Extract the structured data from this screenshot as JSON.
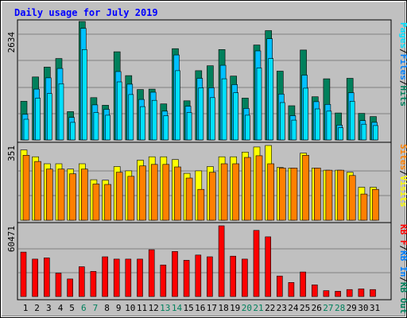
{
  "title": "Daily usage for July 2019",
  "colors": {
    "background": "#C0C0C0",
    "hits": "#00805C",
    "files": "#00C0FF",
    "pages": "#00E0FF",
    "visits": "#FFFF00",
    "sites": "#FF8000",
    "kb_in": "#0080FF",
    "kb_f": "#FF0000",
    "title_text": "#0000FF"
  },
  "chart_data": [
    {
      "type": "bar",
      "panel": "top",
      "y_tick_label": "2634",
      "ylim": [
        0,
        2634
      ],
      "grid": true,
      "legend_position": "right",
      "legend": [
        {
          "label": "Pages",
          "color": "#00E0FF"
        },
        {
          "label": "/",
          "color": "#000000"
        },
        {
          "label": "Files",
          "color": "#0080FF"
        },
        {
          "label": "/",
          "color": "#000000"
        },
        {
          "label": "Hits",
          "color": "#00805C"
        }
      ],
      "categories": [
        "1",
        "2",
        "3",
        "4",
        "5",
        "6",
        "7",
        "8",
        "9",
        "10",
        "11",
        "12",
        "13",
        "14",
        "15",
        "16",
        "17",
        "18",
        "19",
        "20",
        "21",
        "22",
        "23",
        "24",
        "25",
        "26",
        "27",
        "28",
        "29",
        "30",
        "31"
      ],
      "series": [
        {
          "name": "Hits",
          "values": [
            860,
            1400,
            1620,
            1810,
            630,
            2634,
            940,
            770,
            1960,
            1430,
            1120,
            1130,
            800,
            2030,
            870,
            1540,
            1650,
            2010,
            1420,
            930,
            2110,
            2430,
            1530,
            760,
            2000,
            960,
            1360,
            600,
            1370,
            590,
            520
          ]
        },
        {
          "name": "Files",
          "values": [
            570,
            1130,
            1380,
            1590,
            500,
            2480,
            780,
            680,
            1520,
            1240,
            900,
            1060,
            640,
            1890,
            750,
            1370,
            1160,
            1660,
            1230,
            700,
            1980,
            2250,
            1020,
            540,
            1440,
            850,
            790,
            330,
            1050,
            430,
            390
          ]
        },
        {
          "name": "Pages",
          "values": [
            460,
            930,
            1030,
            1250,
            390,
            2010,
            610,
            550,
            1290,
            1010,
            740,
            880,
            540,
            1540,
            610,
            1160,
            940,
            1360,
            1050,
            550,
            1600,
            1810,
            830,
            440,
            1150,
            690,
            640,
            270,
            860,
            350,
            320
          ]
        }
      ]
    },
    {
      "type": "bar",
      "panel": "middle",
      "y_tick_label": "351",
      "ylim": [
        0,
        351
      ],
      "grid": true,
      "legend_position": "right",
      "legend": [
        {
          "label": "Sites",
          "color": "#FF8000"
        },
        {
          "label": "/",
          "color": "#000000"
        },
        {
          "label": "Visits",
          "color": "#FFFF00"
        }
      ],
      "categories": [
        "1",
        "2",
        "3",
        "4",
        "5",
        "6",
        "7",
        "8",
        "9",
        "10",
        "11",
        "12",
        "13",
        "14",
        "15",
        "16",
        "17",
        "18",
        "19",
        "20",
        "21",
        "22",
        "23",
        "24",
        "25",
        "26",
        "27",
        "28",
        "29",
        "30",
        "31"
      ],
      "series": [
        {
          "name": "Visits",
          "values": [
            330,
            298,
            265,
            265,
            240,
            265,
            190,
            188,
            252,
            232,
            282,
            298,
            298,
            285,
            220,
            232,
            252,
            298,
            298,
            320,
            344,
            351,
            248,
            245,
            315,
            245,
            235,
            235,
            225,
            155,
            155
          ]
        },
        {
          "name": "Sites",
          "values": [
            305,
            276,
            240,
            240,
            218,
            240,
            170,
            168,
            225,
            206,
            255,
            262,
            262,
            250,
            198,
            145,
            225,
            265,
            265,
            295,
            303,
            265,
            245,
            245,
            305,
            245,
            235,
            235,
            210,
            123,
            145
          ]
        }
      ]
    },
    {
      "type": "bar",
      "panel": "bottom",
      "y_tick_label": "60471",
      "ylim": [
        0,
        60471
      ],
      "grid": true,
      "legend_position": "right",
      "legend": [
        {
          "label": "KB F",
          "color": "#FF0000"
        },
        {
          "label": "/",
          "color": "#000000"
        },
        {
          "label": "KB In",
          "color": "#0080FF"
        },
        {
          "label": "/",
          "color": "#000000"
        },
        {
          "label": "KB Out",
          "color": "#00805C"
        }
      ],
      "categories": [
        "1",
        "2",
        "3",
        "4",
        "5",
        "6",
        "7",
        "8",
        "9",
        "10",
        "11",
        "12",
        "13",
        "14",
        "15",
        "16",
        "17",
        "18",
        "19",
        "20",
        "21",
        "22",
        "23",
        "24",
        "25",
        "26",
        "27",
        "28",
        "29",
        "30",
        "31"
      ],
      "series": [
        {
          "name": "KB F",
          "values": [
            38000,
            32000,
            33000,
            20000,
            15000,
            25500,
            21500,
            34000,
            32000,
            32000,
            32000,
            40000,
            27000,
            38500,
            31000,
            35500,
            34000,
            60471,
            34500,
            32000,
            56500,
            51000,
            17500,
            12000,
            21000,
            10000,
            5000,
            4500,
            6000,
            6500,
            6000
          ]
        }
      ]
    }
  ],
  "x_axis": {
    "labels": [
      "1",
      "2",
      "3",
      "4",
      "5",
      "6",
      "7",
      "8",
      "9",
      "10",
      "11",
      "12",
      "13",
      "14",
      "15",
      "16",
      "17",
      "18",
      "19",
      "20",
      "21",
      "22",
      "23",
      "24",
      "25",
      "26",
      "27",
      "28",
      "29",
      "30",
      "31"
    ],
    "weekend_days": [
      6,
      7,
      13,
      14,
      20,
      21,
      27,
      28
    ]
  }
}
